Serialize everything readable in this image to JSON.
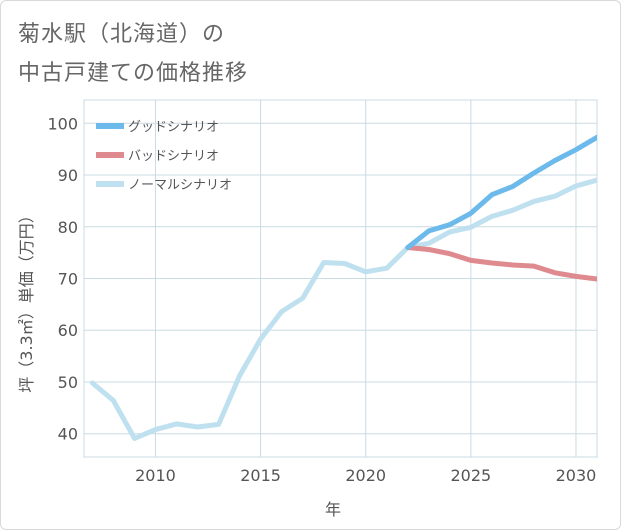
{
  "chart_data": {
    "type": "line",
    "title_lines": [
      "菊水駅（北海道）の",
      "中古戸建ての価格推移"
    ],
    "xlabel": "年",
    "ylabel": "坪（3.3㎡）単価（万円）",
    "xlim": [
      2006.6,
      2031.0
    ],
    "ylim": [
      35.5,
      104.5
    ],
    "x_ticks": [
      2010,
      2015,
      2020,
      2025,
      2030
    ],
    "y_ticks": [
      40,
      50,
      60,
      70,
      80,
      90,
      100
    ],
    "grid": true,
    "legend_position": "top-left",
    "series": [
      {
        "name": "グッドシナリオ",
        "color": "#6cb9ec",
        "x": [
          2022,
          2023,
          2024,
          2025,
          2026,
          2027,
          2028,
          2029,
          2030,
          2031
        ],
        "y": [
          76.0,
          79.2,
          80.4,
          82.6,
          86.2,
          87.8,
          90.4,
          92.8,
          94.9,
          97.3
        ]
      },
      {
        "name": "バッドシナリオ",
        "color": "#de8a8e",
        "x": [
          2022,
          2023,
          2024,
          2025,
          2026,
          2027,
          2028,
          2029,
          2030,
          2031
        ],
        "y": [
          76.0,
          75.6,
          74.8,
          73.5,
          73.0,
          72.6,
          72.4,
          71.1,
          70.4,
          69.9
        ]
      },
      {
        "name": "ノーマルシナリオ",
        "color": "#bfe0ef",
        "x": [
          2007,
          2008,
          2009,
          2010,
          2011,
          2012,
          2013,
          2014,
          2015,
          2016,
          2017,
          2018,
          2019,
          2020,
          2021,
          2022,
          2023,
          2024,
          2025,
          2026,
          2027,
          2028,
          2029,
          2030,
          2031
        ],
        "y": [
          49.8,
          46.4,
          39.1,
          40.8,
          41.9,
          41.3,
          41.8,
          51.2,
          58.3,
          63.6,
          66.2,
          73.1,
          72.9,
          71.3,
          72.0,
          76.0,
          76.8,
          79.0,
          79.9,
          82.0,
          83.2,
          84.9,
          85.9,
          87.9,
          89.0
        ]
      }
    ]
  }
}
